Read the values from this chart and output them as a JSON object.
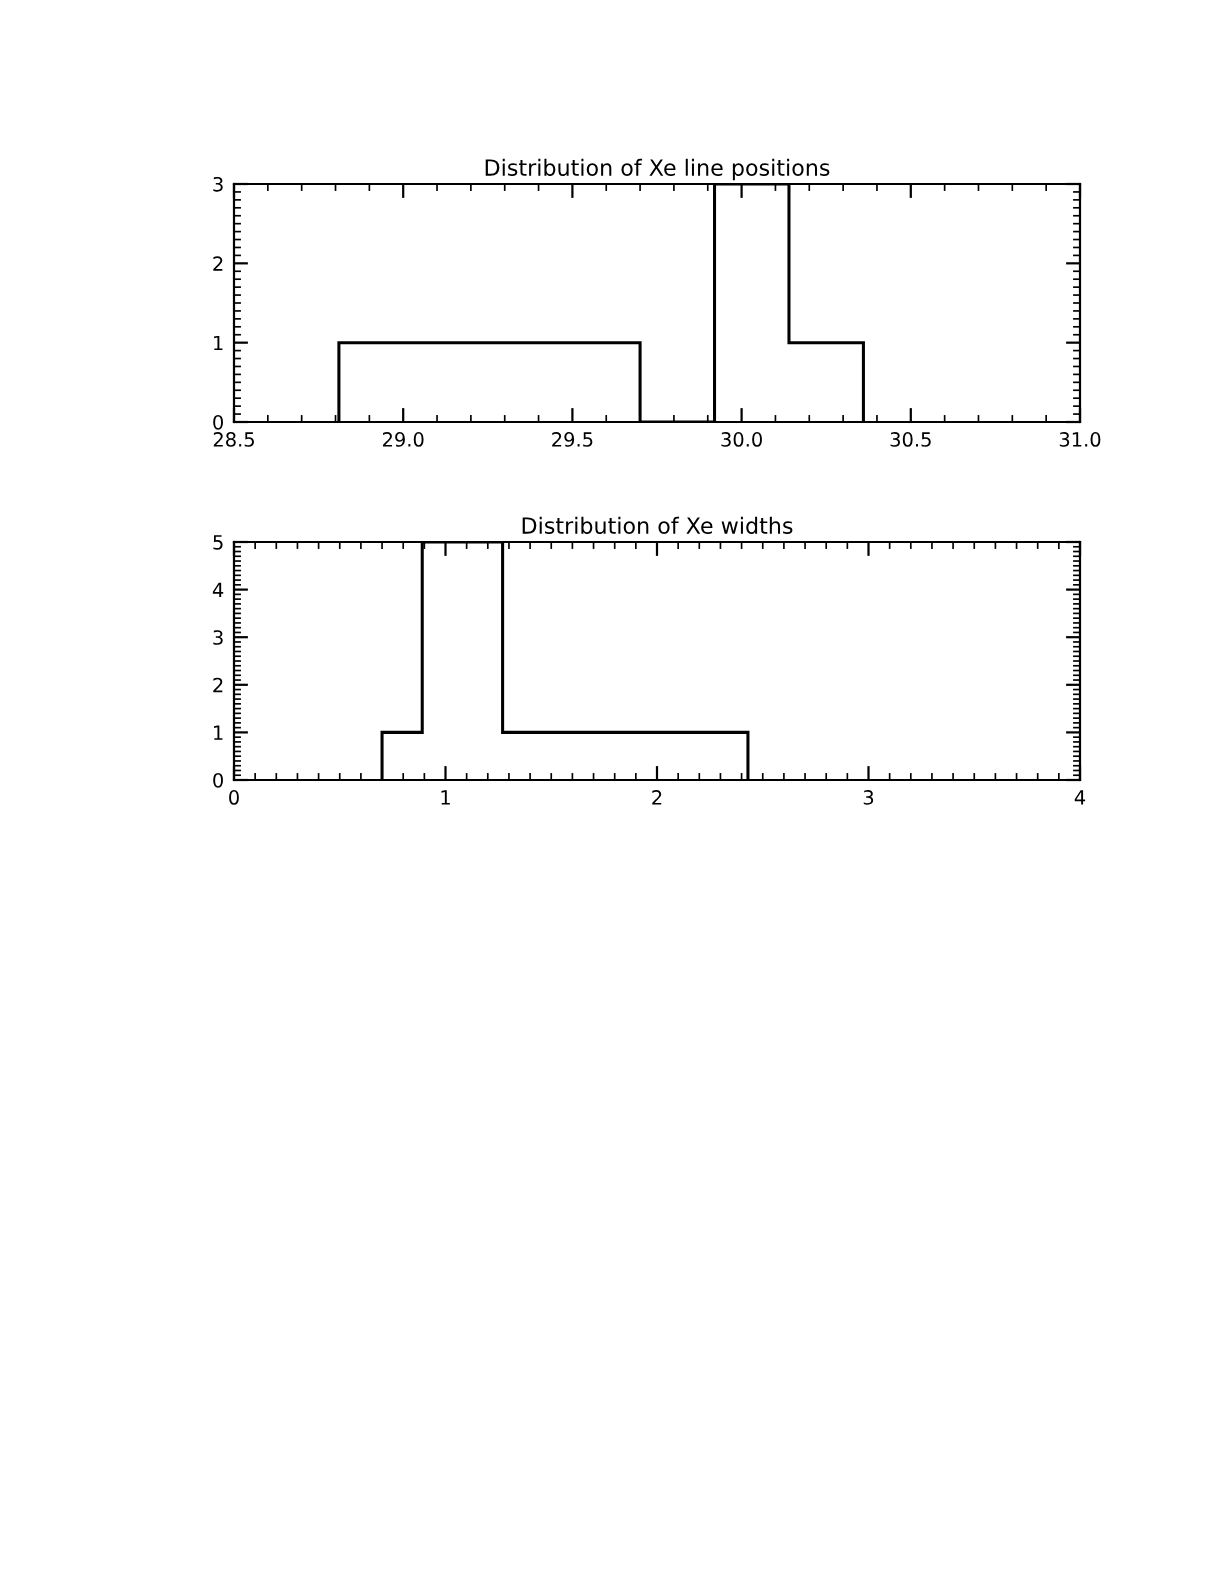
{
  "chart_data": [
    {
      "type": "histogram",
      "title": "Distribution of Xe line positions",
      "bins": [
        28.81,
        29.7,
        29.92,
        30.14,
        30.36
      ],
      "values": [
        1,
        0,
        3,
        1
      ],
      "color": "#000000",
      "xlim": [
        28.5,
        31.0
      ],
      "xticks": [
        {
          "value": 28.5,
          "label": "28.5"
        },
        {
          "value": 29.0,
          "label": "29.0"
        },
        {
          "value": 29.5,
          "label": "29.5"
        },
        {
          "value": 30.0,
          "label": "30.0"
        },
        {
          "value": 30.5,
          "label": "30.5"
        },
        {
          "value": 31.0,
          "label": "31.0"
        }
      ],
      "ylim": [
        0,
        3
      ],
      "yticks": [
        0,
        1,
        2,
        3
      ],
      "grid": false
    },
    {
      "type": "histogram",
      "title": "Distribution of Xe widths",
      "bins": [
        0.7,
        0.89,
        1.27,
        2.43
      ],
      "values": [
        1,
        5,
        1
      ],
      "color": "#000000",
      "xlim": [
        0,
        4
      ],
      "xticks": [
        0,
        1,
        2,
        3,
        4
      ],
      "ylim": [
        0,
        5
      ],
      "yticks": [
        0,
        1,
        2,
        3,
        4,
        5
      ],
      "grid": false
    }
  ]
}
